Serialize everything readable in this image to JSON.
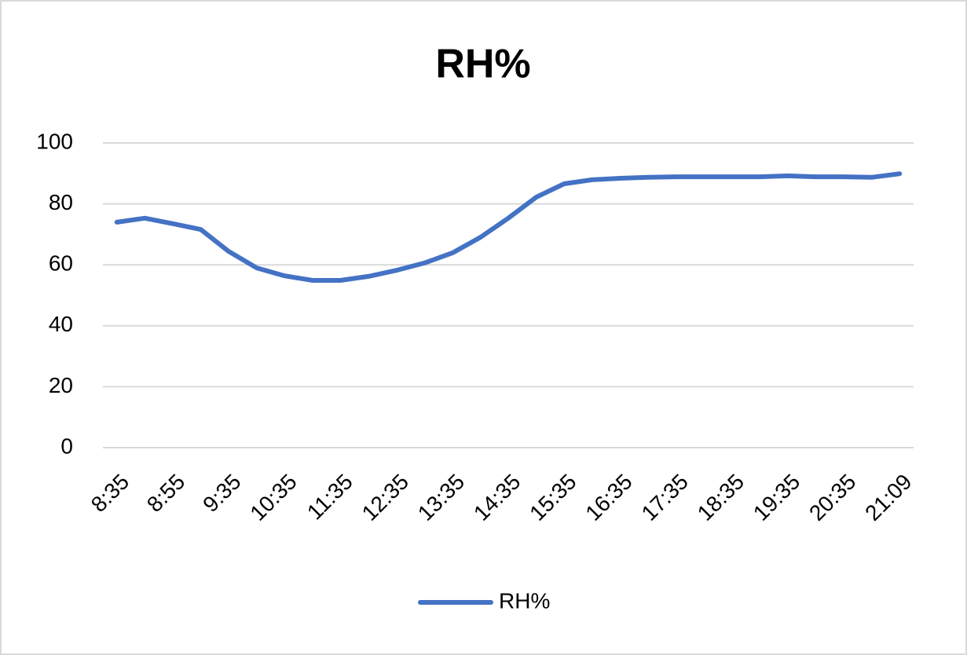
{
  "chart_data": {
    "type": "line",
    "title": "RH%",
    "categories": [
      "8:35",
      null,
      "8:55",
      null,
      "9:35",
      null,
      "10:35",
      null,
      "11:35",
      null,
      "12:35",
      null,
      "13:35",
      null,
      "14:35",
      null,
      "15:35",
      null,
      "16:35",
      null,
      "17:35",
      null,
      "18:35",
      null,
      "19:35",
      null,
      "20:35",
      null,
      "21:09"
    ],
    "series": [
      {
        "name": "RH%",
        "color": "#4472c4",
        "values": [
          74,
          75.3,
          73.5,
          71.6,
          64.4,
          59,
          56.4,
          54.9,
          54.9,
          56.2,
          58.2,
          60.6,
          63.9,
          69,
          75.3,
          82.2,
          86.6,
          87.9,
          88.4,
          88.7,
          88.9,
          88.9,
          88.9,
          88.9,
          89.2,
          88.9,
          88.9,
          88.7,
          89.9
        ]
      }
    ],
    "ylim": [
      0,
      100
    ],
    "yticks": [
      0,
      20,
      40,
      60,
      80,
      100
    ],
    "grid": true,
    "legend": "bottom"
  }
}
